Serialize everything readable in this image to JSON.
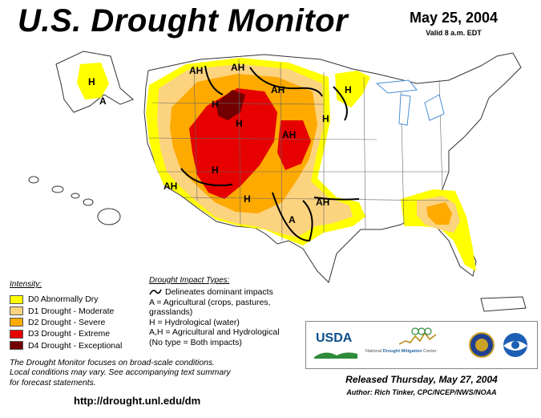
{
  "header": {
    "title": "U.S. Drought Monitor",
    "date": "May 25, 2004",
    "valid": "Valid 8 a.m. EDT"
  },
  "intensity": {
    "title": "Intensity:",
    "items": [
      {
        "label": "D0 Abnormally Dry",
        "color": "#ffff00"
      },
      {
        "label": "D1 Drought - Moderate",
        "color": "#fcd37f"
      },
      {
        "label": "D2 Drought - Severe",
        "color": "#ffaa00"
      },
      {
        "label": "D3 Drought - Extreme",
        "color": "#e60000"
      },
      {
        "label": "D4 Drought - Exceptional",
        "color": "#730000"
      }
    ]
  },
  "impact_types": {
    "title": "Drought Impact Types:",
    "lines": [
      "Delineates dominant impacts",
      "A = Agricultural (crops, pastures,",
      "grasslands)",
      "H = Hydrological (water)",
      "A,H = Agricultural and Hydrological",
      "(No type = Both impacts)"
    ]
  },
  "map_labels": [
    {
      "text": "H"
    },
    {
      "text": "A"
    },
    {
      "text": "AH"
    },
    {
      "text": "AH"
    },
    {
      "text": "H"
    },
    {
      "text": "H"
    },
    {
      "text": "AH"
    },
    {
      "text": "AH"
    },
    {
      "text": "H"
    },
    {
      "text": "H"
    },
    {
      "text": "AH"
    },
    {
      "text": "H"
    },
    {
      "text": "H"
    },
    {
      "text": "A"
    },
    {
      "text": "AH"
    }
  ],
  "footnote": {
    "line1": "The Drought Monitor focuses on broad-scale conditions.",
    "line2": "Local conditions may vary.  See accompanying text summary",
    "line3": "for forecast statements."
  },
  "url": "http://drought.unl.edu/dm",
  "logos": {
    "usda": "USDA",
    "ndmc_prefix": "National",
    "ndmc_name": "Drought Mitigation",
    "ndmc_suffix": "Center"
  },
  "released": "Released Thursday, May 27, 2004",
  "author": "Author: Rich Tinker, CPC/NCEP/NWS/NOAA",
  "colors": {
    "d0": "#ffff00",
    "d1": "#fcd37f",
    "d2": "#ffaa00",
    "d3": "#e60000",
    "d4": "#730000",
    "water": "#4a8fd6",
    "borders": "#555555"
  }
}
